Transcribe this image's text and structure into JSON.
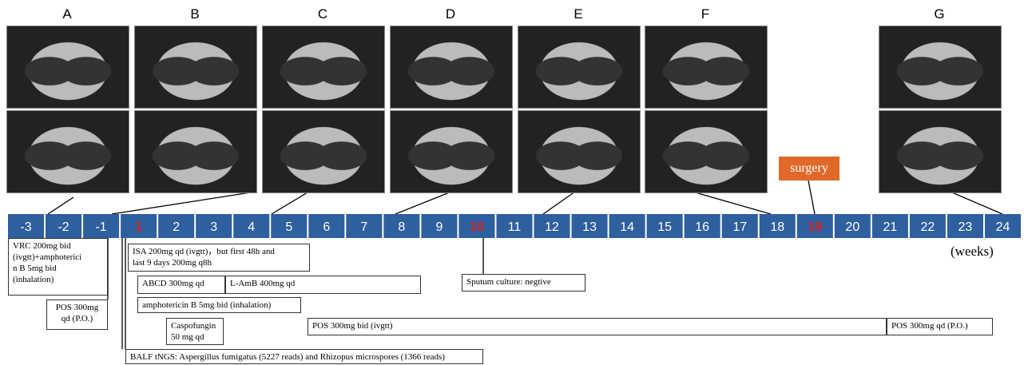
{
  "panels": [
    "A",
    "B",
    "C",
    "D",
    "E",
    "F",
    "G"
  ],
  "timeline": {
    "weeks": [
      "-3",
      "-2",
      "-1",
      "1",
      "2",
      "3",
      "4",
      "5",
      "6",
      "7",
      "8",
      "9",
      "10",
      "11",
      "12",
      "13",
      "14",
      "15",
      "16",
      "17",
      "18",
      "19",
      "20",
      "21",
      "22",
      "23",
      "24"
    ],
    "highlighted": [
      "1",
      "10",
      "19"
    ],
    "unit": "(weeks)"
  },
  "surgery": "surgery",
  "notes": {
    "vrc": [
      "VRC 200mg bid",
      "(ivgtt)+amphoterici",
      "n B 5mg bid",
      "(inhalation)"
    ],
    "pos_po_early": [
      "POS 300mg",
      "qd (P.O.)"
    ],
    "isa": [
      "ISA 200mg qd (ivgtt)，but first 48h and",
      "last 9 days 200mg q8h"
    ],
    "sputum": "Sputum culture: negtive",
    "abcd": "ABCD 300mg qd",
    "lamb": "L-AmB 400mg qd",
    "ampho": "amphotericin B 5mg bid (inhalation)",
    "caspo": [
      "Caspofungin",
      "50 mg qd"
    ],
    "pos_iv": "POS 300mg bid (ivgtt)",
    "pos_po": "POS 300mg qd (P.O.)",
    "balf": "BALF tNGS: Aspergillus fumigatus (5227 reads) and Rhizopus microspores (1366 reads)"
  }
}
